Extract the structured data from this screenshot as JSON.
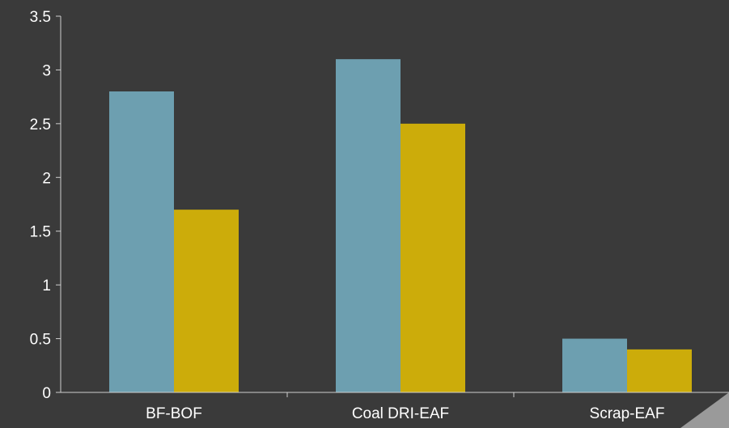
{
  "chart_data": {
    "type": "bar",
    "title": "",
    "xlabel": "",
    "ylabel": "",
    "categories": [
      "BF-BOF",
      "Coal DRI-EAF",
      "Scrap-EAF"
    ],
    "series": [
      {
        "values": [
          2.8,
          3.1,
          0.5
        ],
        "color": "#6d9fb0"
      },
      {
        "values": [
          1.7,
          2.5,
          0.4
        ],
        "color": "#ccac0a"
      }
    ],
    "ylim": [
      0,
      3.5
    ],
    "yticks": [
      "0",
      "0.5",
      "1",
      "1.5",
      "2",
      "2.5",
      "3",
      "3.5"
    ],
    "grid": false,
    "legend": "none"
  },
  "colors": {
    "background": "#3a3a3a",
    "axis": "#cfcfcf",
    "text": "#ffffff"
  }
}
